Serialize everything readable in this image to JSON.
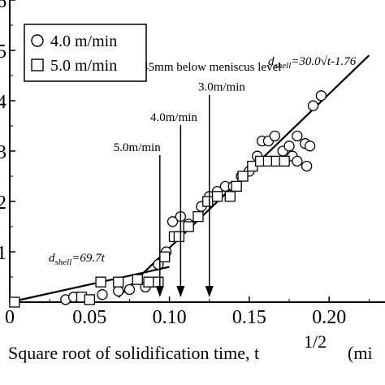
{
  "chart_data": {
    "type": "scatter",
    "title": "",
    "xlabel": "Square root of solidification time, t",
    "xlabel_sup": "1/2",
    "xlabel_unit": "(mi",
    "ylabel": "",
    "xlim": [
      0,
      0.235
    ],
    "ylim": [
      0,
      6
    ],
    "x_ticks": [
      {
        "value": 0,
        "label": "0"
      },
      {
        "value": 0.05,
        "label": "0.05"
      },
      {
        "value": 0.1,
        "label": "0.10"
      },
      {
        "value": 0.15,
        "label": "0.15"
      },
      {
        "value": 0.2,
        "label": "0.20"
      }
    ],
    "y_ticks": [
      {
        "value": 1,
        "label": "1"
      },
      {
        "value": 2,
        "label": "2"
      },
      {
        "value": 3,
        "label": "3"
      },
      {
        "value": 4,
        "label": "4"
      },
      {
        "value": 5,
        "label": "5"
      },
      {
        "value": 6,
        "label": "6"
      }
    ],
    "grid": false,
    "legend_position": "top-left",
    "series": [
      {
        "name": "4.0 m/min",
        "marker": "circle",
        "points": [
          [
            0.035,
            0.05
          ],
          [
            0.04,
            0.1
          ],
          [
            0.058,
            0.15
          ],
          [
            0.068,
            0.22
          ],
          [
            0.075,
            0.25
          ],
          [
            0.085,
            0.3
          ],
          [
            0.093,
            0.75
          ],
          [
            0.098,
            1.0
          ],
          [
            0.102,
            1.6
          ],
          [
            0.107,
            1.7
          ],
          [
            0.112,
            1.55
          ],
          [
            0.12,
            1.9
          ],
          [
            0.125,
            2.1
          ],
          [
            0.13,
            2.2
          ],
          [
            0.135,
            2.3
          ],
          [
            0.14,
            2.3
          ],
          [
            0.145,
            2.5
          ],
          [
            0.15,
            2.6
          ],
          [
            0.155,
            2.9
          ],
          [
            0.158,
            3.2
          ],
          [
            0.162,
            3.2
          ],
          [
            0.166,
            3.3
          ],
          [
            0.171,
            3.0
          ],
          [
            0.175,
            3.1
          ],
          [
            0.177,
            2.9
          ],
          [
            0.18,
            3.3
          ],
          [
            0.185,
            3.15
          ],
          [
            0.18,
            2.8
          ],
          [
            0.186,
            2.7
          ],
          [
            0.188,
            3.1
          ],
          [
            0.19,
            3.9
          ],
          [
            0.195,
            4.1
          ]
        ]
      },
      {
        "name": "5.0 m/min",
        "marker": "square",
        "points": [
          [
            0.003,
            0.0
          ],
          [
            0.045,
            0.1
          ],
          [
            0.05,
            0.05
          ],
          [
            0.057,
            0.4
          ],
          [
            0.068,
            0.4
          ],
          [
            0.08,
            0.45
          ],
          [
            0.087,
            0.4
          ],
          [
            0.093,
            0.4
          ],
          [
            0.097,
            0.9
          ],
          [
            0.103,
            1.3
          ],
          [
            0.106,
            1.3
          ],
          [
            0.112,
            1.5
          ],
          [
            0.118,
            1.7
          ],
          [
            0.124,
            2.0
          ],
          [
            0.13,
            2.1
          ],
          [
            0.138,
            2.1
          ],
          [
            0.142,
            2.3
          ],
          [
            0.146,
            2.5
          ],
          [
            0.152,
            2.7
          ],
          [
            0.157,
            2.8
          ],
          [
            0.162,
            2.8
          ],
          [
            0.167,
            2.8
          ],
          [
            0.172,
            2.8
          ]
        ]
      }
    ],
    "fit_lines": [
      {
        "label_d": "d",
        "label_sub": "shell",
        "label_rest": "=30.0√t-1.76",
        "points": [
          [
            0.068,
            0.1
          ],
          [
            0.225,
            4.9
          ]
        ]
      },
      {
        "label_d": "d",
        "label_sub": "shell",
        "label_rest": "=69.7t",
        "points": [
          [
            0.0,
            0.0
          ],
          [
            0.1,
            0.7
          ]
        ]
      }
    ],
    "annotations": [
      {
        "text": "45mm below meniscus level",
        "x": 0.083,
        "y": 4.6,
        "arrow_x": null
      },
      {
        "text": "3.0m/min",
        "x": 0.118,
        "y": 4.2,
        "arrow_x": 0.125
      },
      {
        "text": "4.0m/min",
        "x": 0.088,
        "y": 3.6,
        "arrow_x": 0.107
      },
      {
        "text": "5.0m/min",
        "x": 0.065,
        "y": 3.0,
        "arrow_x": 0.094
      }
    ]
  }
}
